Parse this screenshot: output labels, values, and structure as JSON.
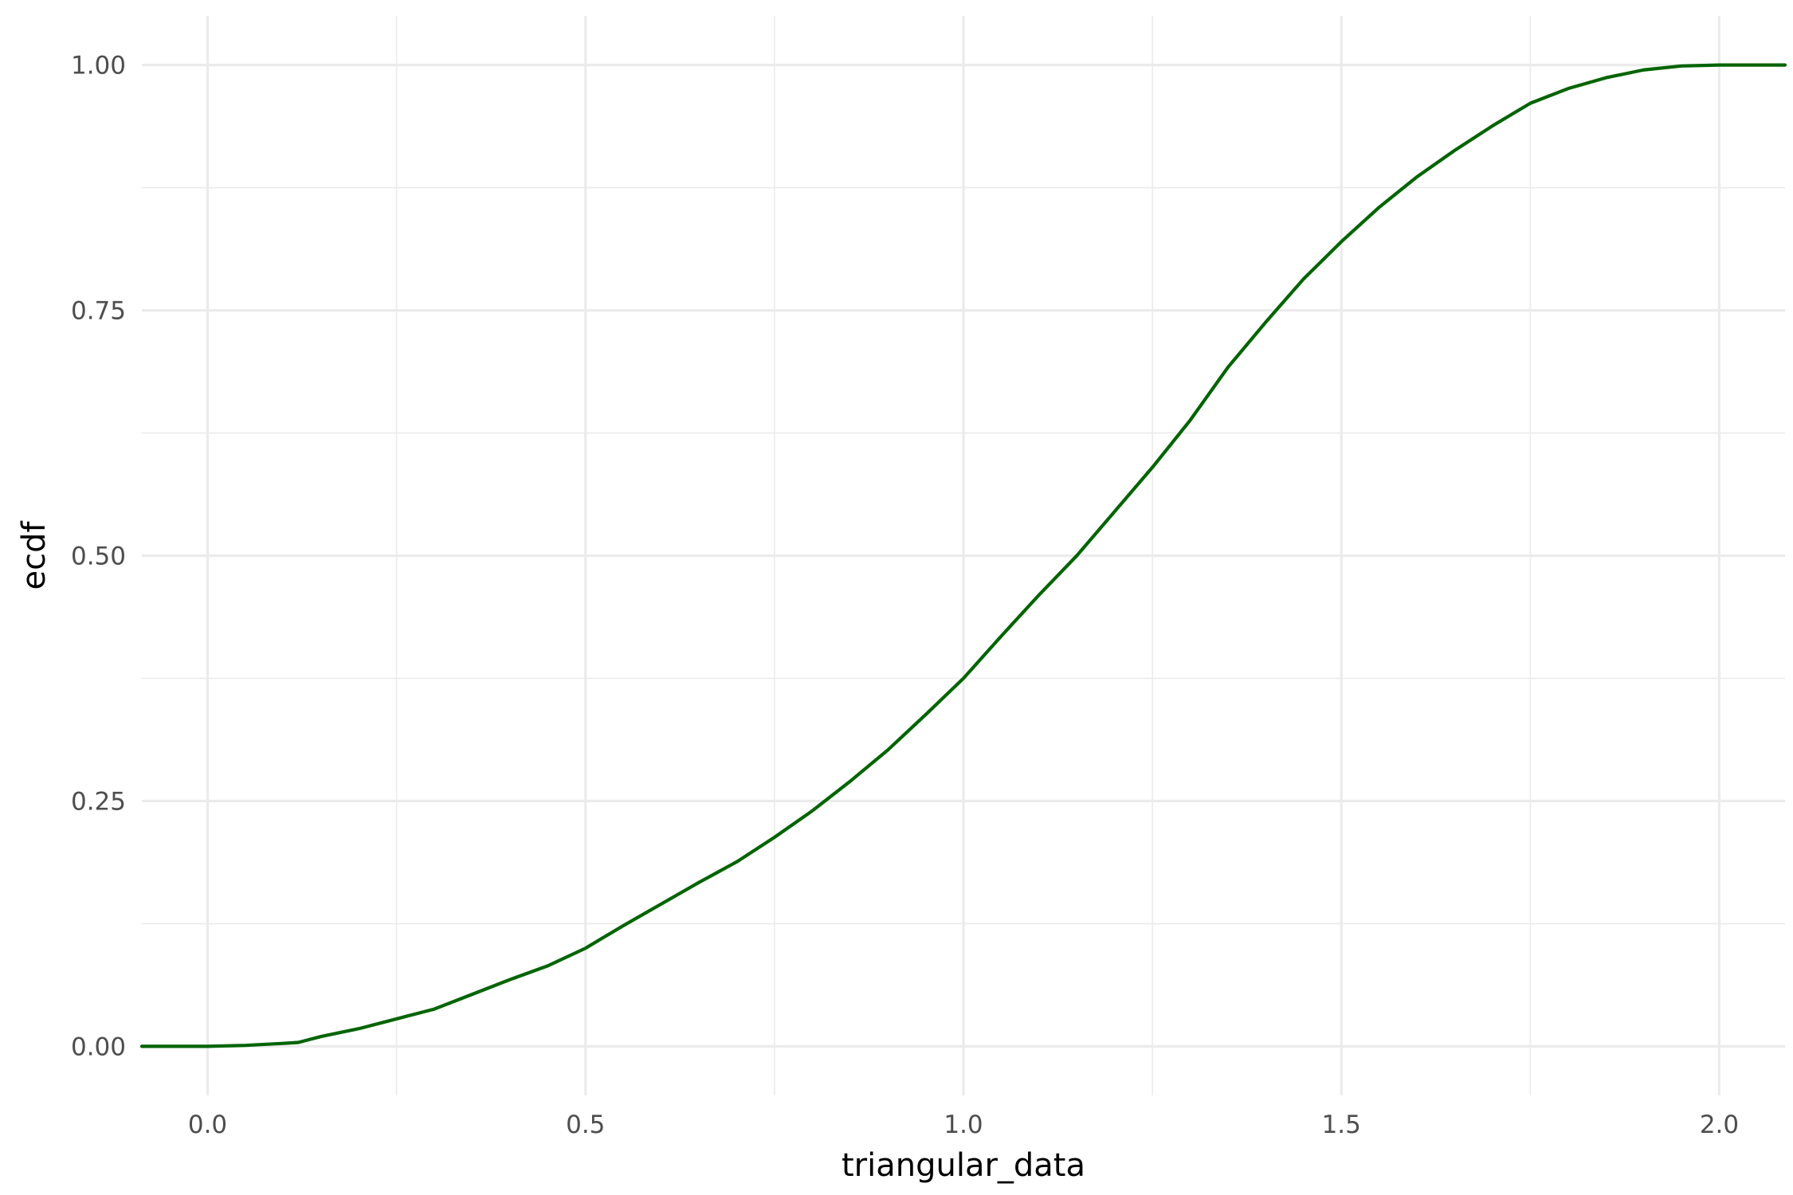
{
  "chart_data": {
    "type": "line",
    "title": "",
    "xlabel": "triangular_data",
    "ylabel": "ecdf",
    "xlim": [
      -0.087,
      2.087
    ],
    "ylim": [
      -0.05,
      1.05
    ],
    "x_ticks": [
      0.0,
      0.5,
      1.0,
      1.5,
      2.0
    ],
    "x_tick_labels": [
      "0.0",
      "0.5",
      "1.0",
      "1.5",
      "2.0"
    ],
    "y_ticks": [
      0.0,
      0.25,
      0.5,
      0.75,
      1.0
    ],
    "y_tick_labels": [
      "0.00",
      "0.25",
      "0.50",
      "0.75",
      "1.00"
    ],
    "x_minor_ticks": [
      0.25,
      0.75,
      1.25,
      1.75
    ],
    "y_minor_ticks": [
      0.125,
      0.375,
      0.625,
      0.875
    ],
    "grid": true,
    "line_color": "#006400",
    "series": [
      {
        "x": [
          -0.087,
          0.0,
          0.05,
          0.1,
          0.12,
          0.15,
          0.2,
          0.25,
          0.3,
          0.35,
          0.4,
          0.45,
          0.5,
          0.55,
          0.6,
          0.65,
          0.7,
          0.75,
          0.8,
          0.85,
          0.9,
          0.95,
          1.0,
          1.05,
          1.1,
          1.15,
          1.2,
          1.25,
          1.3,
          1.35,
          1.4,
          1.45,
          1.5,
          1.55,
          1.6,
          1.65,
          1.7,
          1.75,
          1.8,
          1.85,
          1.9,
          1.95,
          2.0,
          2.087
        ],
        "y": [
          0.0,
          0.0,
          0.001,
          0.003,
          0.004,
          0.01,
          0.018,
          0.028,
          0.038,
          0.053,
          0.068,
          0.082,
          0.1,
          0.123,
          0.145,
          0.167,
          0.188,
          0.213,
          0.24,
          0.27,
          0.302,
          0.338,
          0.375,
          0.418,
          0.46,
          0.5,
          0.545,
          0.59,
          0.638,
          0.692,
          0.738,
          0.782,
          0.82,
          0.855,
          0.886,
          0.913,
          0.938,
          0.961,
          0.976,
          0.987,
          0.995,
          0.999,
          1.0,
          1.0
        ]
      }
    ]
  }
}
